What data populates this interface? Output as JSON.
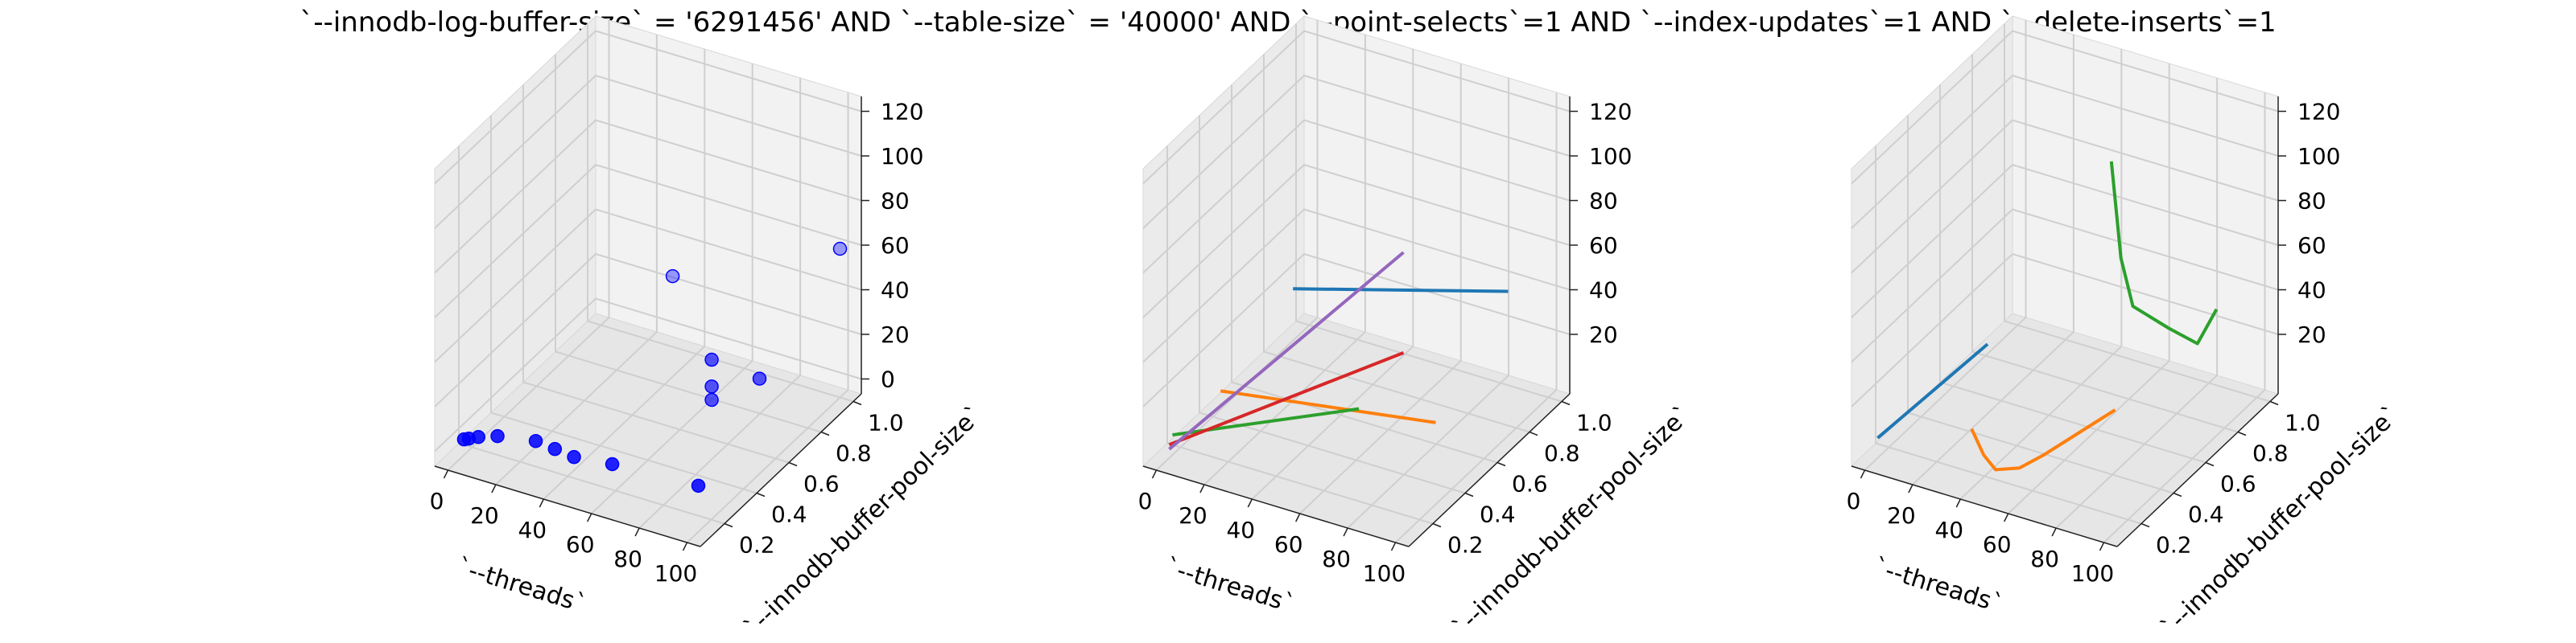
{
  "title": "`--innodb-log-buffer-size` = '6291456' AND `--table-size` = '40000'  AND `--point-selects`=1 AND `--index-updates`=1 AND `--delete-inserts`=1",
  "chart_data": [
    {
      "type": "scatter",
      "xlabel": "`--threads`",
      "ylabel": "`--innodb-buffer-pool-size`",
      "zlabel": "",
      "xlim": [
        0,
        100
      ],
      "ylim": [
        0.1,
        1.0
      ],
      "zlim": [
        0,
        120
      ],
      "xticks": [
        "0",
        "20",
        "40",
        "60",
        "80",
        "100"
      ],
      "yticks": [
        "0.2",
        "0.4",
        "0.6",
        "0.8",
        "1.0"
      ],
      "zticks": [
        "0",
        "20",
        "40",
        "60",
        "80",
        "100",
        "120"
      ],
      "grid": true,
      "color": "#0000ff",
      "points": [
        {
          "x": 2,
          "y": 0.12,
          "z": 3
        },
        {
          "x": 4,
          "y": 0.12,
          "z": 4
        },
        {
          "x": 8,
          "y": 0.12,
          "z": 6
        },
        {
          "x": 16,
          "y": 0.12,
          "z": 9
        },
        {
          "x": 32,
          "y": 0.12,
          "z": 12
        },
        {
          "x": 40,
          "y": 0.12,
          "z": 11
        },
        {
          "x": 48,
          "y": 0.12,
          "z": 10
        },
        {
          "x": 64,
          "y": 0.12,
          "z": 12
        },
        {
          "x": 100,
          "y": 0.12,
          "z": 14
        },
        {
          "x": 80,
          "y": 0.5,
          "z": 20
        },
        {
          "x": 80,
          "y": 0.5,
          "z": 26
        },
        {
          "x": 80,
          "y": 0.5,
          "z": 38
        },
        {
          "x": 100,
          "y": 0.5,
          "z": 36
        },
        {
          "x": 100,
          "y": 1.0,
          "z": 60
        },
        {
          "x": 30,
          "y": 1.0,
          "z": 25
        }
      ]
    },
    {
      "type": "line",
      "xlabel": "`--threads`",
      "ylabel": "`--innodb-buffer-pool-size`",
      "zlabel": "",
      "xlim": [
        0,
        100
      ],
      "ylim": [
        0.1,
        1.0
      ],
      "zlim": [
        0,
        120
      ],
      "xticks": [
        "0",
        "20",
        "40",
        "60",
        "80",
        "100"
      ],
      "yticks": [
        "0.2",
        "0.4",
        "0.6",
        "0.8",
        "1.0"
      ],
      "zticks": [
        "20",
        "40",
        "60",
        "80",
        "100",
        "120"
      ],
      "grid": true,
      "series": [
        {
          "color": "#1f77b4",
          "points": [
            {
              "x": 10,
              "y": 0.75,
              "z": 30
            },
            {
              "x": 100,
              "y": 0.75,
              "z": 58
            }
          ]
        },
        {
          "color": "#ff7f0e",
          "points": [
            {
              "x": 10,
              "y": 0.3,
              "z": 15
            },
            {
              "x": 100,
              "y": 0.3,
              "z": 30
            }
          ]
        },
        {
          "color": "#2ca02c",
          "points": [
            {
              "x": 2,
              "y": 0.12,
              "z": 5
            },
            {
              "x": 80,
              "y": 0.12,
              "z": 42
            }
          ]
        },
        {
          "color": "#d62728",
          "points": [
            {
              "x": 2,
              "y": 0.1,
              "z": 2
            },
            {
              "x": 100,
              "y": 0.1,
              "z": 75
            }
          ]
        },
        {
          "color": "#9467bd",
          "points": [
            {
              "x": 2,
              "y": 0.1,
              "z": 0
            },
            {
              "x": 100,
              "y": 0.1,
              "z": 120
            }
          ]
        }
      ]
    },
    {
      "type": "line",
      "xlabel": "`--threads`",
      "ylabel": "`--innodb-buffer-pool-size`",
      "zlabel": "",
      "xlim": [
        0,
        100
      ],
      "ylim": [
        0.1,
        1.0
      ],
      "zlim": [
        0,
        120
      ],
      "xticks": [
        "0",
        "20",
        "40",
        "60",
        "80",
        "100"
      ],
      "yticks": [
        "0.2",
        "0.4",
        "0.6",
        "0.8",
        "1.0"
      ],
      "zticks": [
        "20",
        "40",
        "60",
        "80",
        "100",
        "120"
      ],
      "grid": true,
      "series": [
        {
          "color": "#1f77b4",
          "points": [
            {
              "x": 2,
              "y": 0.1,
              "z": 5
            },
            {
              "x": 48,
              "y": 0.1,
              "z": 62
            }
          ]
        },
        {
          "color": "#ff7f0e",
          "points": [
            {
              "x": 40,
              "y": 0.12,
              "z": 20
            },
            {
              "x": 45,
              "y": 0.12,
              "z": 10
            },
            {
              "x": 50,
              "y": 0.12,
              "z": 5
            },
            {
              "x": 60,
              "y": 0.12,
              "z": 9
            },
            {
              "x": 70,
              "y": 0.12,
              "z": 18
            },
            {
              "x": 90,
              "y": 0.12,
              "z": 38
            },
            {
              "x": 100,
              "y": 0.12,
              "z": 48
            }
          ]
        },
        {
          "color": "#2ca02c",
          "points": [
            {
              "x": 56,
              "y": 0.75,
              "z": 102
            },
            {
              "x": 60,
              "y": 0.75,
              "z": 60
            },
            {
              "x": 65,
              "y": 0.75,
              "z": 40
            },
            {
              "x": 80,
              "y": 0.75,
              "z": 35
            },
            {
              "x": 92,
              "y": 0.75,
              "z": 32
            },
            {
              "x": 100,
              "y": 0.75,
              "z": 50
            }
          ]
        }
      ]
    }
  ]
}
